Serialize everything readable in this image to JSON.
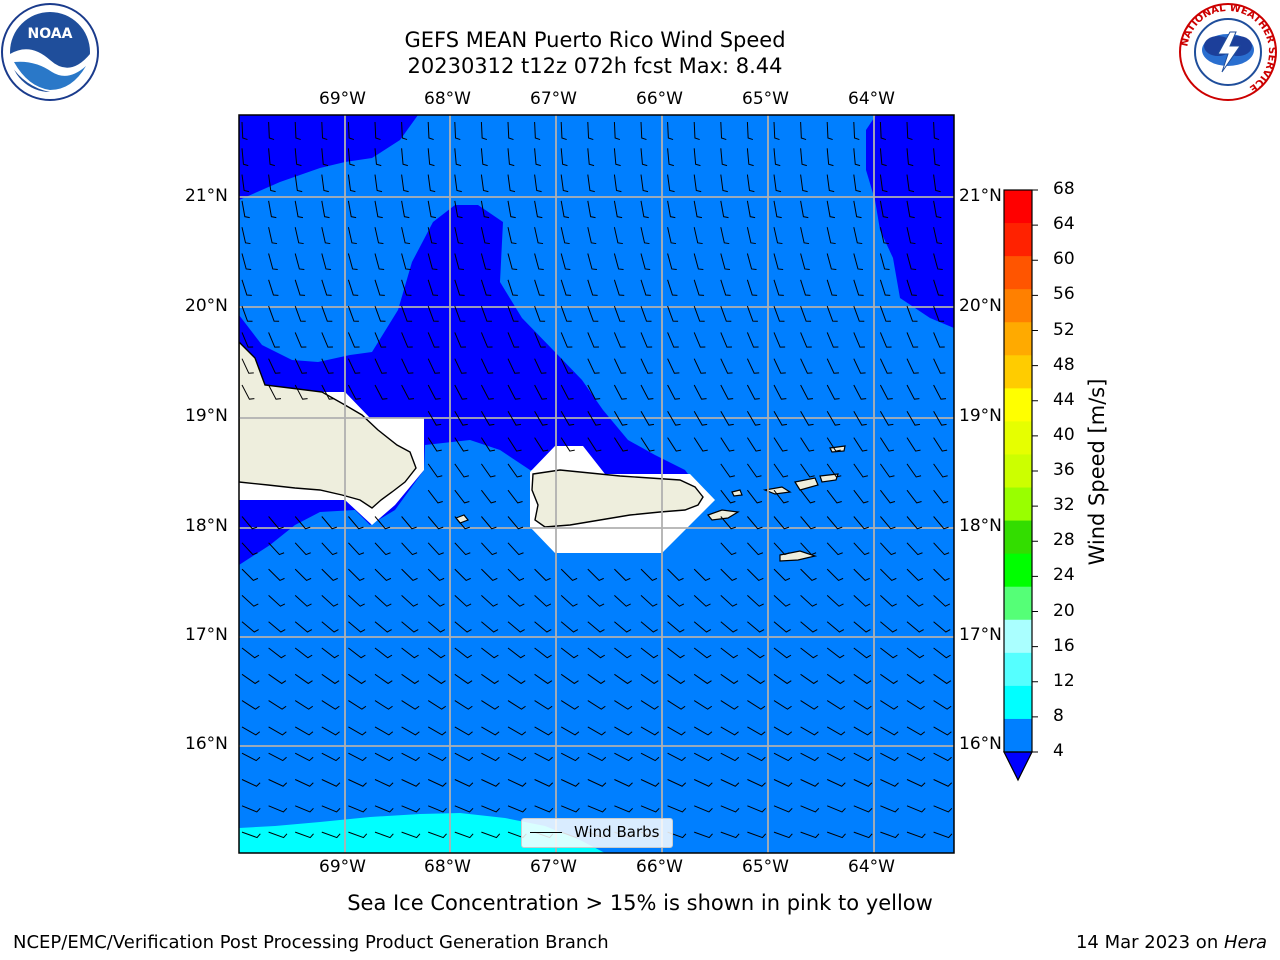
{
  "header": {
    "title_line1": "GEFS MEAN Puerto Rico Wind Speed",
    "title_line2": "20230312 t12z 072h fcst   Max: 8.44"
  },
  "logos": {
    "left": "NOAA",
    "right_ring": "NATIONAL WEATHER SERVICE"
  },
  "map": {
    "lon_labels": [
      "69°W",
      "68°W",
      "67°W",
      "66°W",
      "65°W",
      "64°W"
    ],
    "lat_labels": [
      "21°N",
      "20°N",
      "19°N",
      "18°N",
      "17°N",
      "16°N"
    ],
    "legend_label": "Wind Barbs",
    "colors": {
      "dark_blue": "#0000ff",
      "mid_blue": "#007fff",
      "cyan": "#00ffff",
      "land": "#eeeedd",
      "grid": "#b0b0b0"
    }
  },
  "colorbar": {
    "label": "Wind Speed [m/s]",
    "ticks": [
      "68",
      "64",
      "60",
      "56",
      "52",
      "48",
      "44",
      "40",
      "36",
      "32",
      "28",
      "24",
      "20",
      "16",
      "12",
      "8",
      "4"
    ],
    "colors": [
      "#ff0000",
      "#ff2200",
      "#ff5500",
      "#ff8000",
      "#ffaa00",
      "#ffcc00",
      "#ffff00",
      "#e6ff00",
      "#ccff00",
      "#99ff00",
      "#33dd00",
      "#00ff00",
      "#55ff77",
      "#aaffff",
      "#55ffff",
      "#00ffff",
      "#007fff"
    ],
    "extend_color": "#0000ff"
  },
  "notes": {
    "sea_ice": "Sea Ice Concentration > 15% is shown in pink to yellow"
  },
  "footer": {
    "left": "NCEP/EMC/Verification Post Processing Product Generation Branch",
    "right_date": "14 Mar 2023 on ",
    "right_machine": "Hera"
  }
}
